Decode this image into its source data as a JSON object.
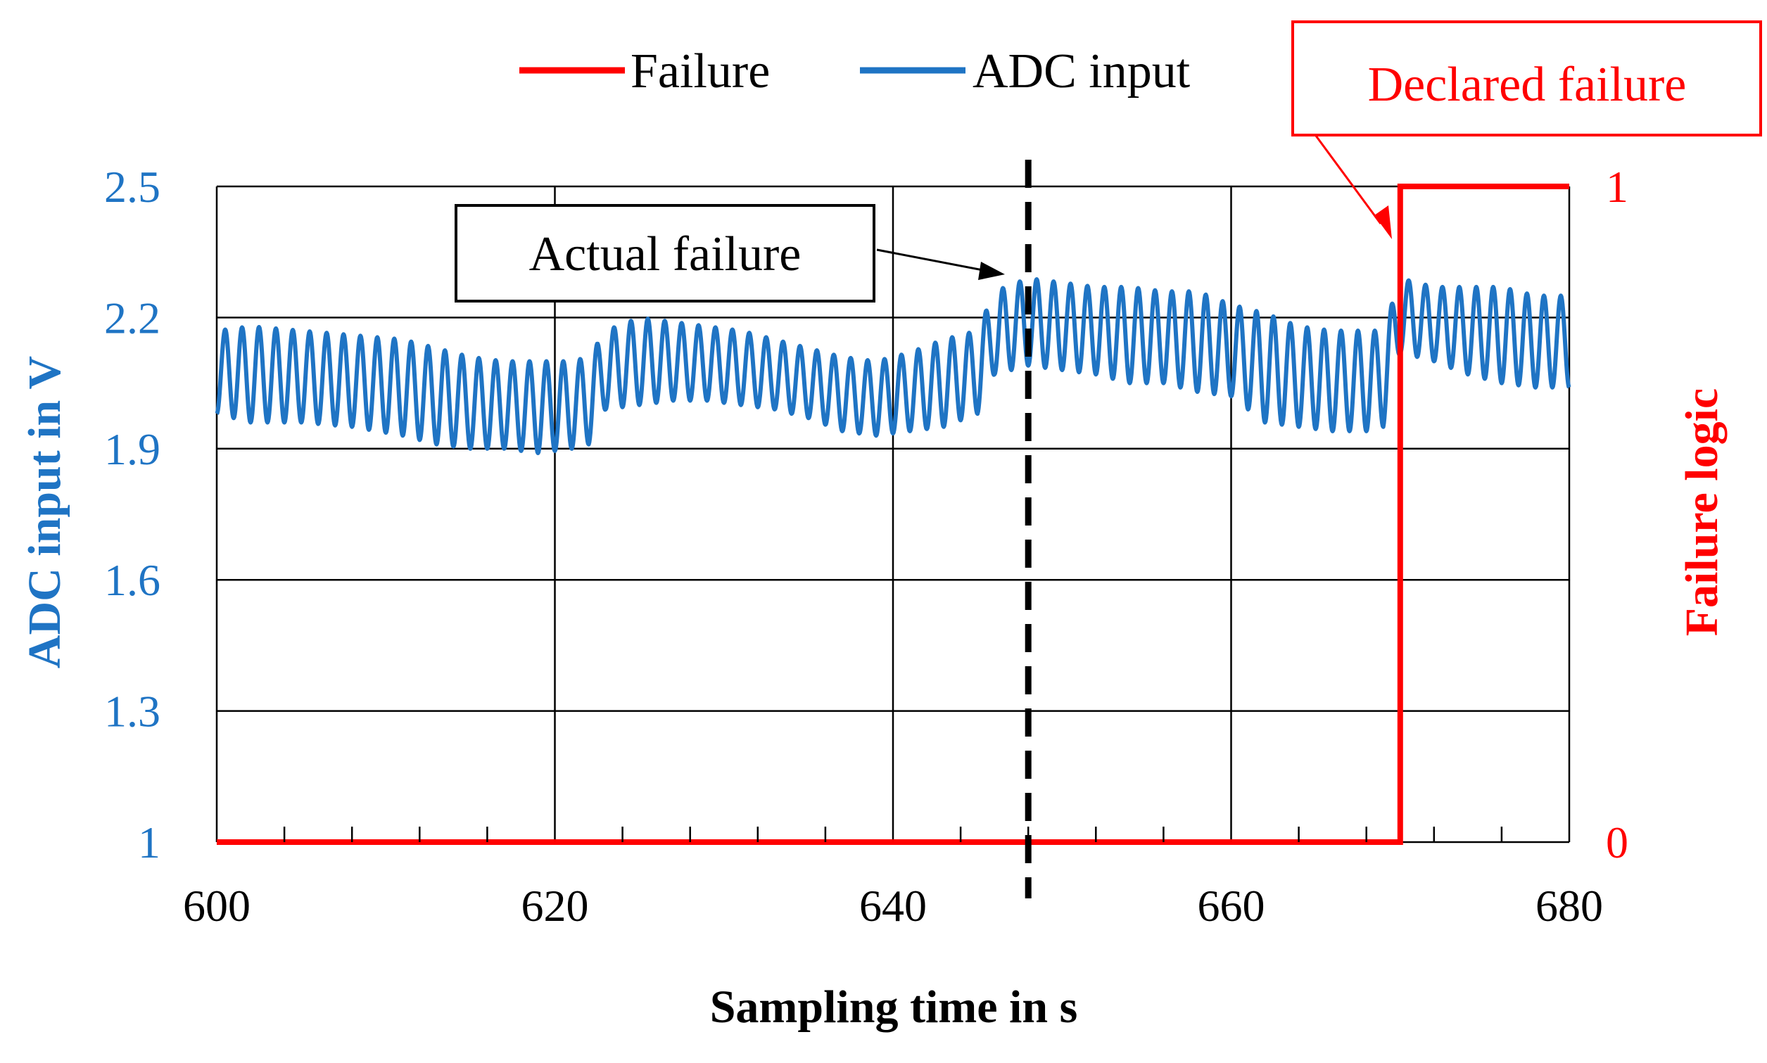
{
  "chart_data": {
    "type": "line",
    "title": "",
    "xlabel": "Sampling time in s",
    "ylabel_left": "ADC input in V",
    "ylabel_right": "Failure logic",
    "xlim": [
      600,
      680
    ],
    "ylim_left": [
      1,
      2.5
    ],
    "ylim_right": [
      0,
      1
    ],
    "x_ticks": [
      600,
      620,
      640,
      660,
      680
    ],
    "x_tick_labels": [
      "600",
      "620",
      "640",
      "660",
      "680"
    ],
    "y_left_ticks": [
      1,
      1.3,
      1.6,
      1.9,
      2.2,
      2.5
    ],
    "y_left_tick_labels": [
      "1",
      "1.3",
      "1.6",
      "1.9",
      "2.2",
      "2.5"
    ],
    "y_right_ticks": [
      0,
      1
    ],
    "y_right_tick_labels": [
      "0",
      "1"
    ],
    "grid": true,
    "legend_position": "top-center",
    "series": [
      {
        "name": "Failure",
        "axis": "right",
        "color": "#ff0000",
        "step": true,
        "points": [
          [
            600,
            0
          ],
          [
            670,
            0
          ],
          [
            670,
            1
          ],
          [
            680,
            1
          ]
        ]
      },
      {
        "name": "ADC input",
        "axis": "left",
        "color": "#1f74c4",
        "oscillation_period_s": 1,
        "envelope": {
          "x": [
            600,
            602,
            605,
            608,
            611,
            613,
            615,
            617,
            619,
            621,
            622,
            623,
            625,
            627,
            629,
            631,
            633,
            635,
            637,
            639,
            641,
            643,
            645,
            646,
            648,
            650,
            652,
            654,
            656,
            658,
            660,
            662,
            664,
            666,
            668,
            669,
            670,
            672,
            674,
            676,
            678,
            680
          ],
          "low": [
            1.98,
            1.96,
            1.96,
            1.95,
            1.93,
            1.91,
            1.9,
            1.9,
            1.89,
            1.9,
            1.91,
            1.99,
            2.0,
            2.01,
            2.01,
            2.0,
            1.99,
            1.97,
            1.94,
            1.93,
            1.94,
            1.95,
            1.98,
            2.07,
            2.09,
            2.08,
            2.07,
            2.05,
            2.05,
            2.03,
            2.02,
            1.96,
            1.95,
            1.94,
            1.94,
            1.95,
            2.12,
            2.1,
            2.07,
            2.05,
            2.04,
            2.04
          ],
          "high": [
            2.17,
            2.18,
            2.17,
            2.16,
            2.15,
            2.13,
            2.11,
            2.1,
            2.1,
            2.1,
            2.11,
            2.17,
            2.2,
            2.19,
            2.18,
            2.17,
            2.15,
            2.13,
            2.11,
            2.1,
            2.12,
            2.15,
            2.17,
            2.26,
            2.29,
            2.28,
            2.27,
            2.27,
            2.26,
            2.26,
            2.23,
            2.21,
            2.18,
            2.17,
            2.17,
            2.17,
            2.29,
            2.27,
            2.27,
            2.27,
            2.25,
            2.25
          ]
        }
      }
    ],
    "markers": [
      {
        "type": "vertical-dashed-line",
        "x": 648,
        "color": "#000000"
      }
    ],
    "annotations": [
      {
        "text": "Actual failure",
        "border_color": "#000000",
        "text_color": "#000000",
        "points_to": [
          648,
          2.31
        ]
      },
      {
        "text": "Declared failure",
        "border_color": "#ff0000",
        "text_color": "#ff0000",
        "points_to": [
          670,
          0.92
        ]
      }
    ],
    "colors": {
      "left_axis": "#1f74c4",
      "right_axis": "#ff0000",
      "grid": "#000000"
    }
  }
}
